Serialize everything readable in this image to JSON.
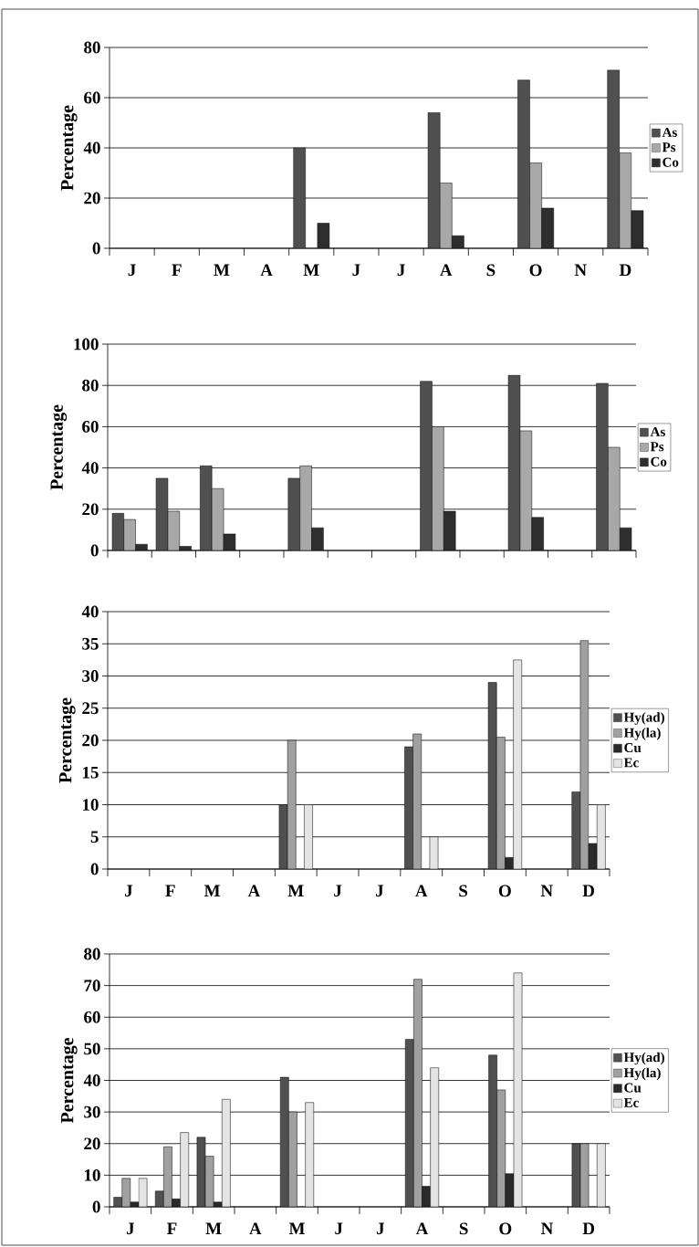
{
  "chart_data": [
    {
      "type": "bar",
      "ylabel": "Percentage",
      "categories": [
        "J",
        "F",
        "M",
        "A",
        "M",
        "J",
        "J",
        "A",
        "S",
        "O",
        "N",
        "D"
      ],
      "ylim": [
        0,
        80
      ],
      "yticks": [
        0,
        20,
        40,
        60,
        80
      ],
      "grid": "y",
      "legend": "right",
      "series": [
        {
          "name": "As",
          "color": "#505050",
          "values": [
            null,
            null,
            null,
            null,
            40,
            null,
            null,
            54,
            null,
            67,
            null,
            71
          ]
        },
        {
          "name": "Ps",
          "color": "#a8a8a8",
          "values": [
            null,
            null,
            null,
            null,
            null,
            null,
            null,
            26,
            null,
            34,
            null,
            38
          ]
        },
        {
          "name": "Co",
          "color": "#2e2e2e",
          "values": [
            null,
            null,
            null,
            null,
            10,
            null,
            null,
            5,
            null,
            16,
            null,
            15
          ]
        }
      ]
    },
    {
      "type": "bar",
      "ylabel": "Percentage",
      "categories": [
        null,
        null,
        null,
        null,
        null,
        null,
        null,
        null,
        null,
        null,
        null,
        null
      ],
      "tick_labels": "y",
      "ylim": [
        0,
        100
      ],
      "yticks": [
        0,
        20,
        40,
        60,
        80,
        100
      ],
      "grid": "y",
      "legend": "right",
      "series": [
        {
          "name": "As",
          "color": "#505050",
          "values": [
            18,
            35,
            41,
            null,
            35,
            null,
            null,
            82,
            null,
            85,
            null,
            81
          ]
        },
        {
          "name": "Ps",
          "color": "#a8a8a8",
          "values": [
            15,
            19,
            30,
            null,
            41,
            null,
            null,
            60,
            null,
            58,
            null,
            50
          ]
        },
        {
          "name": "Co",
          "color": "#2e2e2e",
          "values": [
            3,
            2,
            8,
            null,
            11,
            null,
            null,
            19,
            null,
            16,
            null,
            11
          ]
        }
      ]
    },
    {
      "type": "bar",
      "ylabel": "Percentage",
      "categories": [
        "J",
        "F",
        "M",
        "A",
        "M",
        "J",
        "J",
        "A",
        "S",
        "O",
        "N",
        "D"
      ],
      "ylim": [
        0,
        40
      ],
      "yticks": [
        0,
        5,
        10,
        15,
        20,
        25,
        30,
        35,
        40
      ],
      "grid": "y",
      "legend": "right",
      "series": [
        {
          "name": "Hy(ad)",
          "color": "#505050",
          "values": [
            null,
            null,
            null,
            null,
            10,
            null,
            null,
            19,
            null,
            29,
            null,
            12
          ]
        },
        {
          "name": "Hy(la)",
          "color": "#a0a0a0",
          "values": [
            null,
            null,
            null,
            null,
            20,
            null,
            null,
            21,
            null,
            20.5,
            null,
            35.5
          ]
        },
        {
          "name": "Cu",
          "color": "#2a2a2a",
          "values": [
            null,
            null,
            null,
            null,
            null,
            null,
            null,
            null,
            null,
            1.8,
            null,
            4
          ]
        },
        {
          "name": "Ec",
          "color": "#e4e4e4",
          "values": [
            null,
            null,
            null,
            null,
            10,
            null,
            null,
            5,
            null,
            32.5,
            null,
            10
          ]
        }
      ]
    },
    {
      "type": "bar",
      "ylabel": "Percentage",
      "categories": [
        "J",
        "F",
        "M",
        "A",
        "M",
        "J",
        "J",
        "A",
        "S",
        "O",
        "N",
        "D"
      ],
      "ylim": [
        0,
        80
      ],
      "yticks": [
        0,
        10,
        20,
        30,
        40,
        50,
        60,
        70,
        80
      ],
      "grid": "y",
      "legend": "right",
      "series": [
        {
          "name": "Hy(ad)",
          "color": "#505050",
          "values": [
            3,
            5,
            22,
            null,
            41,
            null,
            null,
            53,
            null,
            48,
            null,
            20
          ]
        },
        {
          "name": "Hy(la)",
          "color": "#a0a0a0",
          "values": [
            9,
            19,
            16,
            null,
            30,
            null,
            null,
            72,
            null,
            37,
            null,
            20
          ]
        },
        {
          "name": "Cu",
          "color": "#2a2a2a",
          "values": [
            1.5,
            2.5,
            1.5,
            null,
            null,
            null,
            null,
            6.5,
            null,
            10.5,
            null,
            null
          ]
        },
        {
          "name": "Ec",
          "color": "#e4e4e4",
          "values": [
            9,
            23.5,
            34,
            null,
            33,
            null,
            null,
            44,
            null,
            74,
            null,
            20
          ]
        }
      ]
    }
  ]
}
